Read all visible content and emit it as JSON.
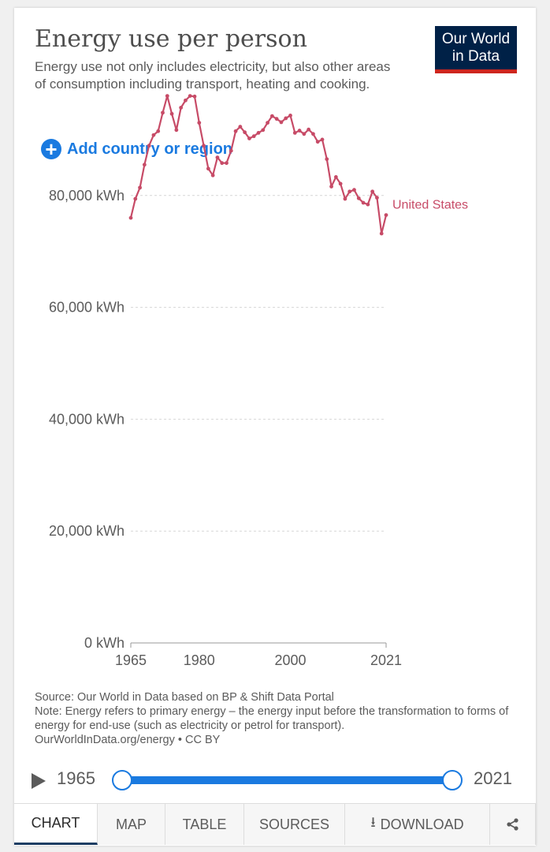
{
  "header": {
    "title": "Energy use per person",
    "subtitle": "Energy use not only includes electricity, but also other areas of consumption including transport, heating and cooking.",
    "logo_line1": "Our World",
    "logo_line2": "in Data"
  },
  "controls": {
    "add_label": "Add country or region"
  },
  "colors": {
    "series": "#c74b67",
    "accent": "#1a7ae0",
    "logo_bg": "#002147",
    "logo_bar": "#ce261e"
  },
  "chart_data": {
    "type": "line",
    "title": "Energy use per person",
    "xlim": [
      1965,
      2021
    ],
    "ylim": [
      0,
      100000
    ],
    "x_ticks": [
      "1965",
      "1980",
      "2000",
      "2021"
    ],
    "y_ticks": [
      "0 kWh",
      "20,000 kWh",
      "40,000 kWh",
      "60,000 kWh",
      "80,000 kWh"
    ],
    "grid": true,
    "series": [
      {
        "name": "United States",
        "x": [
          1965,
          1966,
          1967,
          1968,
          1969,
          1970,
          1971,
          1972,
          1973,
          1974,
          1975,
          1976,
          1977,
          1978,
          1979,
          1980,
          1981,
          1982,
          1983,
          1984,
          1985,
          1986,
          1987,
          1988,
          1989,
          1990,
          1991,
          1992,
          1993,
          1994,
          1995,
          1996,
          1997,
          1998,
          1999,
          2000,
          2001,
          2002,
          2003,
          2004,
          2005,
          2006,
          2007,
          2008,
          2009,
          2010,
          2011,
          2012,
          2013,
          2014,
          2015,
          2016,
          2017,
          2018,
          2019,
          2020,
          2021
        ],
        "y": [
          76000,
          79400,
          81400,
          85500,
          88900,
          90800,
          91500,
          94800,
          97800,
          94600,
          91700,
          95700,
          97000,
          97800,
          97700,
          93000,
          88900,
          84800,
          83600,
          86800,
          85800,
          85800,
          88000,
          91500,
          92300,
          91300,
          90200,
          90600,
          91200,
          91700,
          93000,
          94200,
          93700,
          93100,
          93800,
          94300,
          91200,
          91600,
          91000,
          91800,
          91000,
          89600,
          90000,
          86500,
          81600,
          83300,
          82100,
          79400,
          80700,
          81000,
          79500,
          78700,
          78400,
          80700,
          79600,
          73200,
          76500
        ]
      }
    ]
  },
  "footer": {
    "source": "Source: Our World in Data based on BP & Shift Data Portal",
    "note": "Note: Energy refers to primary energy – the energy input before the transformation to forms of energy for end-use (such as electricity or petrol for transport).",
    "license": "OurWorldInData.org/energy • CC BY"
  },
  "timeline": {
    "start": "1965",
    "end": "2021"
  },
  "tabs": {
    "chart": "CHART",
    "map": "MAP",
    "table": "TABLE",
    "sources": "SOURCES",
    "download": "DOWNLOAD"
  },
  "icons": {
    "share": "share-icon",
    "download": "download-icon",
    "play": "play-icon",
    "add": "plus-circle-icon"
  }
}
